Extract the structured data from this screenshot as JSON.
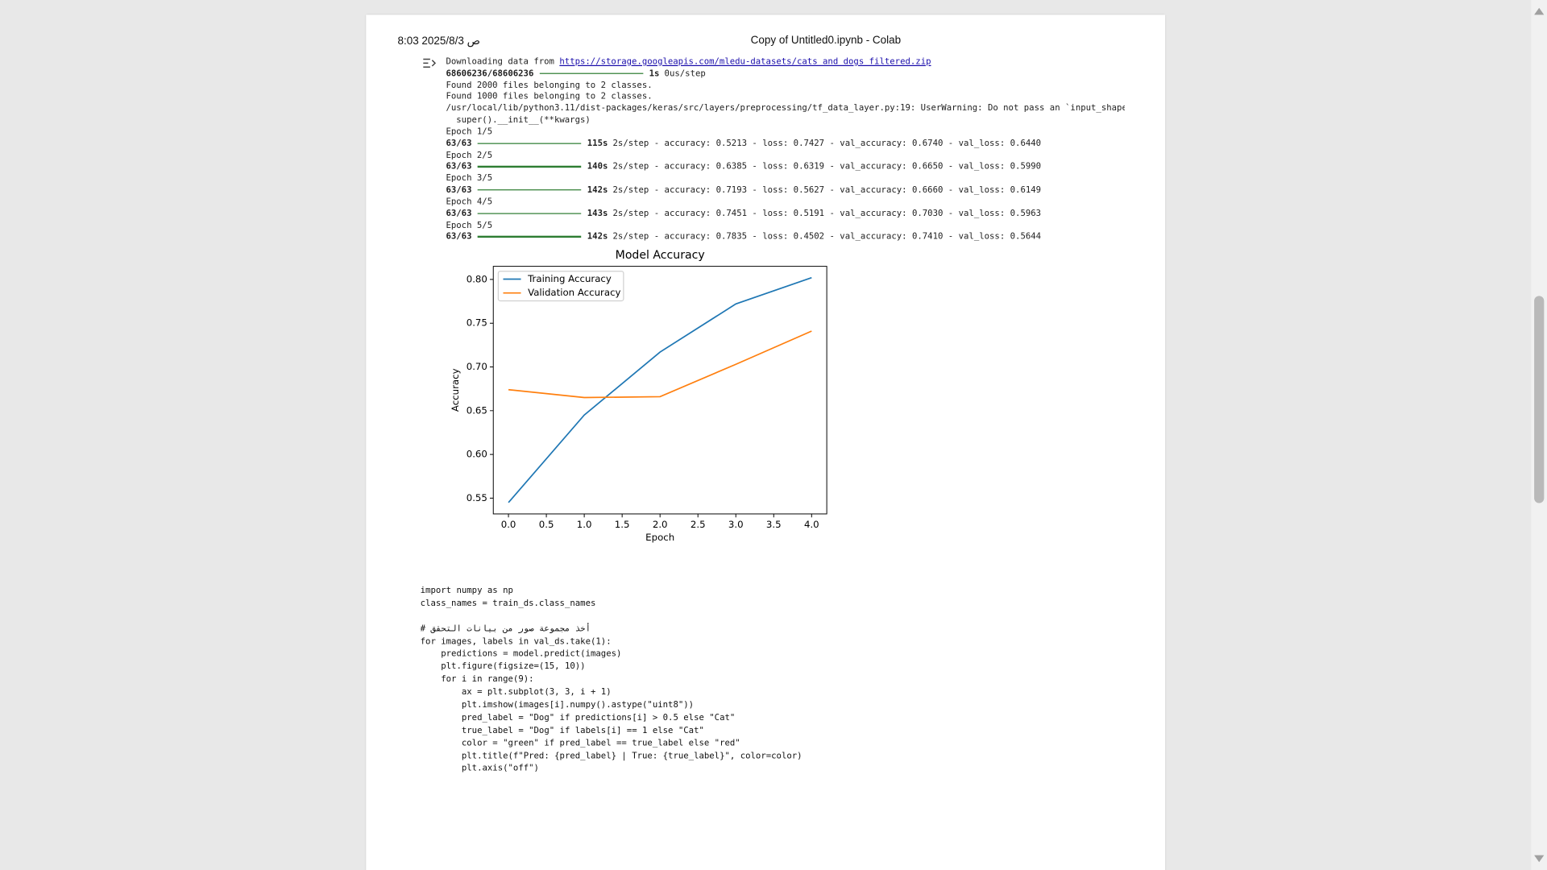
{
  "header": {
    "datetime": "8:03 2025/8/3 ص",
    "title": "Copy of Untitled0.ipynb - Colab"
  },
  "output": [
    {
      "text": "Downloading data from ",
      "link": "https://storage.googleapis.com/mledu-datasets/cats_and_dogs_filtered.zip"
    },
    {
      "count": "68606236/68606236",
      "time": "1s",
      "rest": "0us/step"
    },
    {
      "text": "Found 2000 files belonging to 2 classes."
    },
    {
      "text": "Found 1000 files belonging to 2 classes."
    },
    {
      "text": "/usr/local/lib/python3.11/dist-packages/keras/src/layers/preprocessing/tf_data_layer.py:19: UserWarning: Do not pass an `input_shape"
    },
    {
      "text": "  super().__init__(**kwargs)"
    },
    {
      "text": "Epoch 1/5"
    },
    {
      "count": "63/63",
      "time": "115s",
      "rest": "2s/step - accuracy: 0.5213 - loss: 0.7427 - val_accuracy: 0.6740 - val_loss: 0.6440"
    },
    {
      "text": "Epoch 2/5"
    },
    {
      "count": "63/63",
      "time": "140s",
      "rest": "2s/step - accuracy: 0.6385 - loss: 0.6319 - val_accuracy: 0.6650 - val_loss: 0.5990"
    },
    {
      "text": "Epoch 3/5"
    },
    {
      "count": "63/63",
      "time": "142s",
      "rest": "2s/step - accuracy: 0.7193 - loss: 0.5627 - val_accuracy: 0.6660 - val_loss: 0.6149"
    },
    {
      "text": "Epoch 4/5"
    },
    {
      "count": "63/63",
      "time": "143s",
      "rest": "2s/step - accuracy: 0.7451 - loss: 0.5191 - val_accuracy: 0.7030 - val_loss: 0.5963"
    },
    {
      "text": "Epoch 5/5"
    },
    {
      "count": "63/63",
      "time": "142s",
      "rest": "2s/step - accuracy: 0.7835 - loss: 0.4502 - val_accuracy: 0.7410 - val_loss: 0.5644"
    }
  ],
  "chart_data": {
    "type": "line",
    "title": "Model Accuracy",
    "x_label": "Epoch",
    "y_label": "Accuracy",
    "x": [
      0,
      1,
      2,
      3,
      4
    ],
    "series": [
      {
        "name": "Training Accuracy",
        "color": "#1f77b4",
        "values": [
          0.545,
          0.645,
          0.717,
          0.772,
          0.802
        ]
      },
      {
        "name": "Validation Accuracy",
        "color": "#ff7f0e",
        "values": [
          0.674,
          0.665,
          0.666,
          0.703,
          0.741
        ]
      }
    ],
    "xlim": [
      -0.2,
      4.2
    ],
    "xticks": [
      {
        "value": 0,
        "label": "0.0"
      },
      0.5,
      {
        "value": 1,
        "label": "1.0"
      },
      1.5,
      {
        "value": 2,
        "label": "2.0"
      },
      2.5,
      {
        "value": 3,
        "label": "3.0"
      },
      3.5,
      {
        "value": 4,
        "label": "4.0"
      }
    ],
    "ylim": [
      0.532,
      0.815
    ],
    "yticks": [
      0.55,
      {
        "value": 0.6,
        "label": "0.60"
      },
      0.65,
      {
        "value": 0.7,
        "label": "0.70"
      },
      0.75,
      {
        "value": 0.8,
        "label": "0.80"
      }
    ],
    "grid": false,
    "legend": "upper left"
  },
  "code": [
    [
      "import numpy as np",
      "class_names = train_ds.class_names"
    ],
    [
      "# أخذ مجموعة صور من بيانات التحقق",
      "for images, labels in val_ds.take(1):",
      "    predictions = model.predict(images)",
      "    plt.figure(figsize=(15, 10))",
      "    for i in range(9):",
      "        ax = plt.subplot(3, 3, i + 1)",
      "        plt.imshow(images[i].numpy().astype(\"uint8\"))",
      "        pred_label = \"Dog\" if predictions[i] > 0.5 else \"Cat\"",
      "        true_label = \"Dog\" if labels[i] == 1 else \"Cat\"",
      "        color = \"green\" if pred_label == true_label else \"red\"",
      "        plt.title(f\"Pred: {pred_label} | True: {true_label}\", color=color)",
      "        plt.axis(\"off\")"
    ]
  ]
}
